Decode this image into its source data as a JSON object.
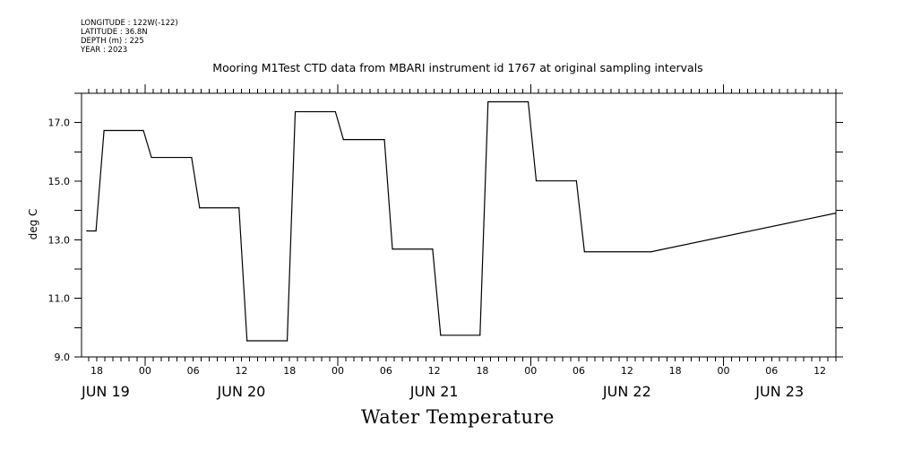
{
  "header": {
    "longitude": "LONGITUDE : 122W(-122)",
    "latitude": "LATITUDE : 36.8N",
    "depth": "DEPTH (m) : 225",
    "year": "YEAR : 2023"
  },
  "chart_data": {
    "type": "line",
    "title": "Mooring M1Test CTD data from MBARI instrument id 1767 at original sampling intervals",
    "subtitle": "Water Temperature",
    "ylabel": "deg C",
    "xlabel": "",
    "x_unit": "hours since JUN 19 00:00",
    "xlim": [
      16.1,
      110.0
    ],
    "ylim": [
      9.0,
      18.0
    ],
    "ytick_values": [
      9.0,
      11.0,
      13.0,
      15.0,
      17.0
    ],
    "ytick_labels": [
      "9.0",
      "11.0",
      "13.0",
      "15.0",
      "17.0"
    ],
    "xtick_hours": [
      18,
      24,
      30,
      36,
      42,
      48,
      54,
      60,
      66,
      72,
      78,
      84,
      90,
      96,
      102,
      108
    ],
    "xtick_labels": [
      "18",
      "00",
      "06",
      "12",
      "18",
      "00",
      "06",
      "12",
      "18",
      "00",
      "06",
      "12",
      "18",
      "00",
      "06",
      "12"
    ],
    "day_labels": [
      "JUN 19",
      "JUN 20",
      "JUN 21",
      "JUN 22",
      "JUN 23"
    ],
    "grid": false,
    "series": [
      {
        "name": "Water Temperature",
        "color": "#000000",
        "x": [
          16.75,
          17.9,
          18.9,
          23.8,
          24.8,
          29.8,
          30.8,
          35.7,
          36.7,
          41.7,
          42.7,
          47.7,
          48.7,
          53.8,
          54.8,
          59.8,
          60.8,
          65.7,
          66.7,
          71.7,
          72.7,
          77.7,
          78.7,
          87.0,
          110.0
        ],
        "y": [
          13.3,
          13.3,
          16.73,
          16.73,
          15.81,
          15.81,
          14.09,
          14.09,
          9.55,
          9.55,
          17.37,
          17.37,
          16.42,
          16.42,
          12.68,
          12.68,
          9.74,
          9.74,
          17.71,
          17.71,
          15.01,
          15.01,
          12.59,
          12.59,
          13.91
        ]
      }
    ]
  }
}
